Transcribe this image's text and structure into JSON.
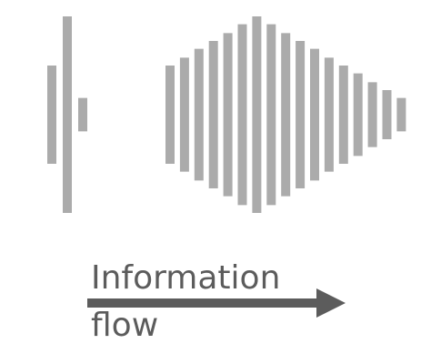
{
  "diagram": {
    "caption_line_1": "Information",
    "caption_line_2": "flow",
    "colors": {
      "bar": "#ababab",
      "arrow": "#5c5c5c",
      "text": "#5c5c5c",
      "background": "#ffffff"
    },
    "small_pulse_levels": [
      0.5,
      1.0,
      0.17
    ],
    "large_pulse_levels": [
      0.5,
      0.58,
      0.67,
      0.75,
      0.83,
      0.92,
      1.0,
      0.92,
      0.83,
      0.75,
      0.67,
      0.58,
      0.5,
      0.42,
      0.33,
      0.25,
      0.17
    ]
  }
}
